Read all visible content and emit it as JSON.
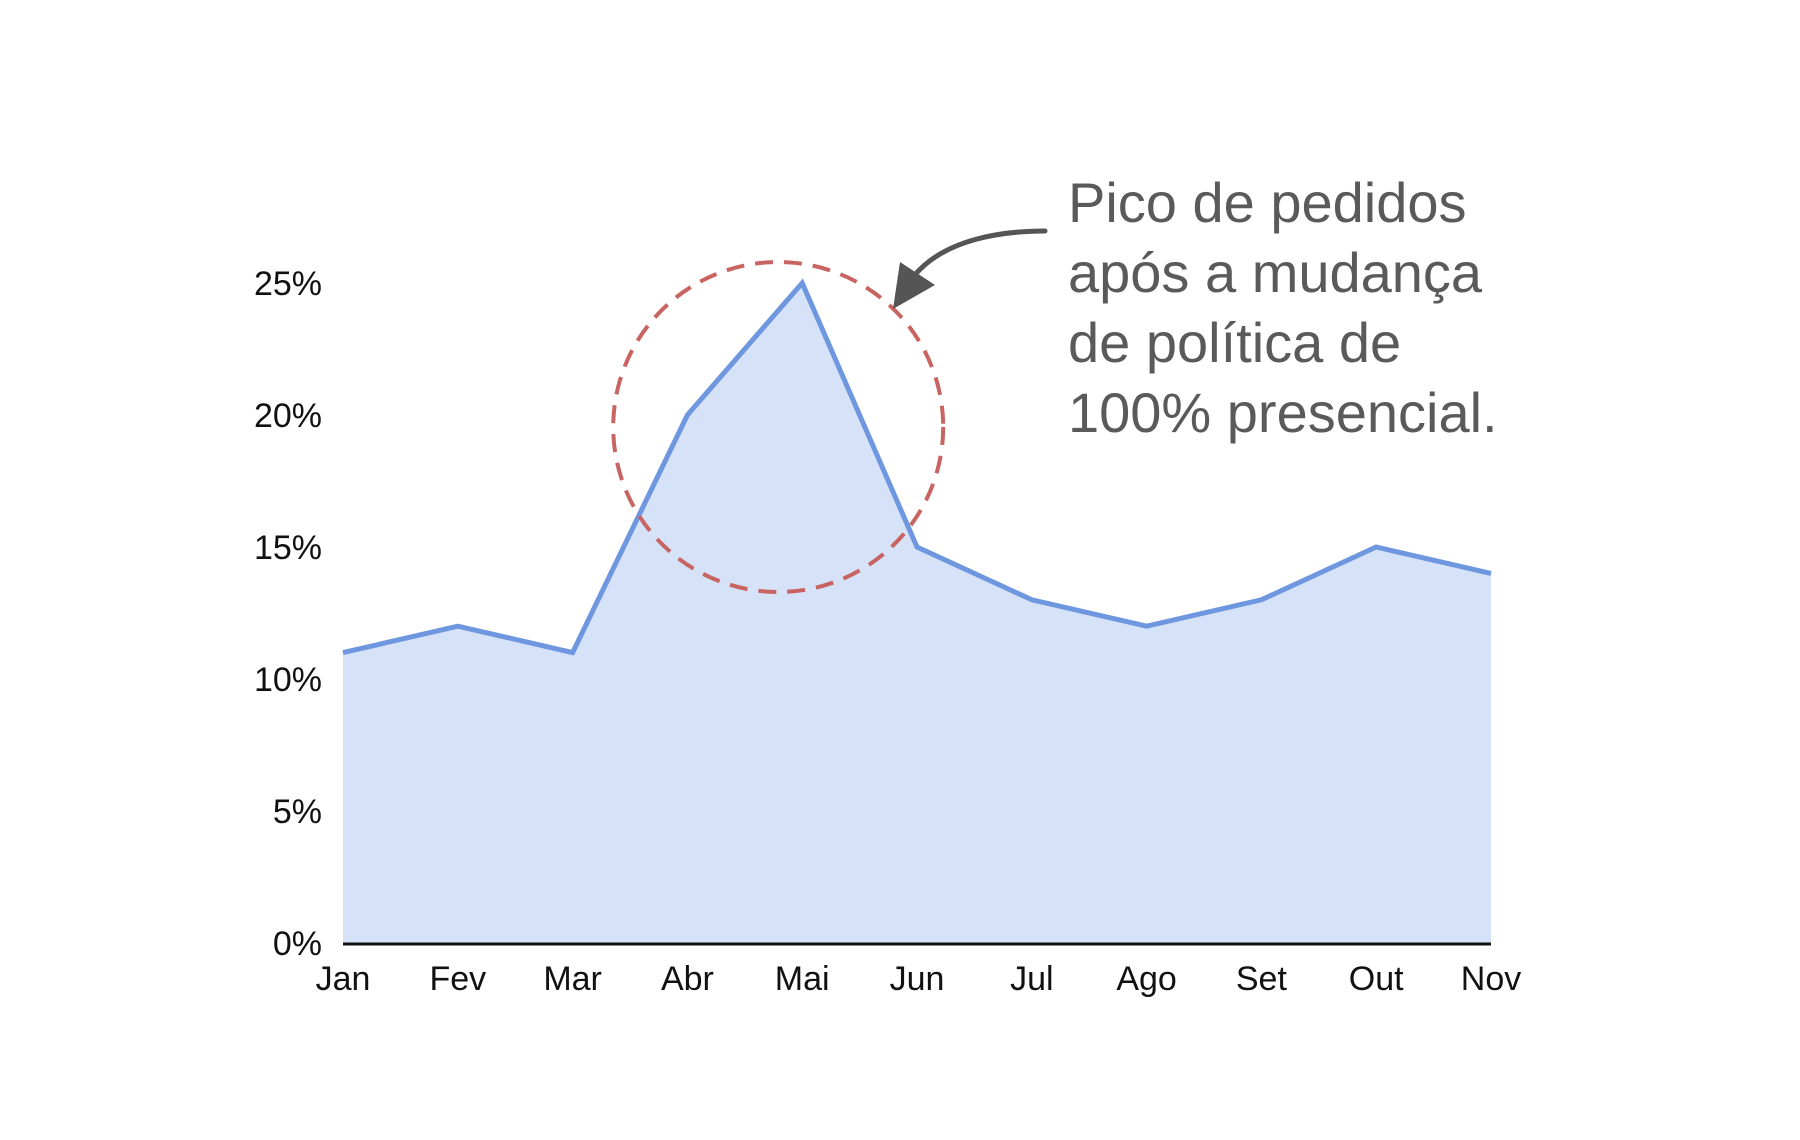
{
  "chart_data": {
    "type": "area",
    "categories": [
      "Jan",
      "Fev",
      "Mar",
      "Abr",
      "Mai",
      "Jun",
      "Jul",
      "Ago",
      "Set",
      "Out",
      "Nov"
    ],
    "series": [
      {
        "values": [
          11,
          12,
          11,
          20,
          25,
          15,
          13,
          12,
          13,
          15,
          14
        ]
      }
    ],
    "y_ticks": [
      "0%",
      "5%",
      "10%",
      "15%",
      "20%",
      "25%"
    ],
    "y_tick_values": [
      0,
      5,
      10,
      15,
      20,
      25
    ],
    "ylim": [
      0,
      25
    ],
    "grid": false,
    "title": "",
    "xlabel": "",
    "ylabel": "",
    "annotation": {
      "lines": [
        "Pico de pedidos",
        "após a mudança",
        "de política de",
        "100% presencial."
      ],
      "highlight_category": "Mai",
      "highlight_shape": "dashed-circle"
    },
    "colors": {
      "line": "#6f97e0",
      "fill": "#d6e2f8",
      "highlight": "#c86462",
      "annotation_text": "#5a5a5a",
      "arrow": "#555555",
      "axis": "#111111"
    }
  }
}
